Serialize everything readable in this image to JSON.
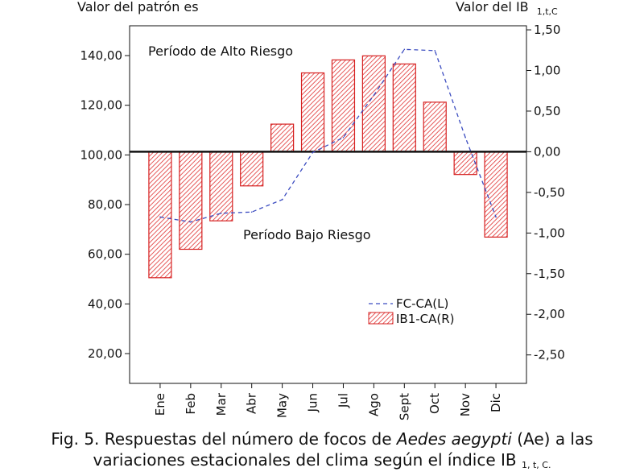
{
  "chart_data": {
    "type": "bar+line",
    "left_axis_title": "Valor del patrón es",
    "right_axis_title": "Valor del IB",
    "right_axis_title_sub": "1,t,C",
    "categories": [
      "Ene",
      "Feb",
      "Mar",
      "Abr",
      "May",
      "Jun",
      "Jul",
      "Ago",
      "Sept",
      "Oct",
      "Nov",
      "Dic"
    ],
    "left_axis": {
      "ylim": [
        8,
        152
      ],
      "ticks": [
        "20,00",
        "40,00",
        "60,00",
        "80,00",
        "100,00",
        "120,00",
        "140,00"
      ],
      "tick_values": [
        20,
        40,
        60,
        80,
        100,
        120,
        140
      ]
    },
    "right_axis": {
      "ylim": [
        -2.85,
        1.55
      ],
      "ticks": [
        "1,50",
        "1,00",
        "0,50",
        "0,00",
        "-0,50",
        "-1,00",
        "-1,50",
        "-2,00",
        "-2,50"
      ],
      "tick_values": [
        1.5,
        1.0,
        0.5,
        0.0,
        -0.5,
        -1.0,
        -1.5,
        -2.0,
        -2.5
      ]
    },
    "series": [
      {
        "name": "FC-CA(L)",
        "type": "line",
        "axis": "left",
        "color": "#3b4cc0",
        "dash": true,
        "values": [
          75,
          73,
          76.5,
          77,
          82,
          101,
          107,
          124,
          142.5,
          142,
          107,
          75
        ]
      },
      {
        "name": "IB1-CA(R)",
        "type": "bar",
        "axis": "right",
        "color": "#d62020",
        "hatched": true,
        "values": [
          -1.55,
          -1.2,
          -0.85,
          -0.42,
          0.34,
          0.97,
          1.13,
          1.18,
          1.08,
          0.61,
          -0.28,
          -1.05
        ]
      }
    ],
    "reference_line": {
      "axis": "right",
      "value": 0.0
    },
    "annotations": [
      "Período de Alto Riesgo",
      "Período Bajo Riesgo"
    ],
    "legend_position": "lower-right inside plot",
    "grid": false
  },
  "caption": {
    "prefix": "Fig. 5. Respuestas del número de focos de ",
    "species": "Aedes aegypti",
    "middle": " (Ae) a las",
    "line2": "variaciones estacionales del clima según el índice IB",
    "line2_sub": "1, t, C."
  }
}
